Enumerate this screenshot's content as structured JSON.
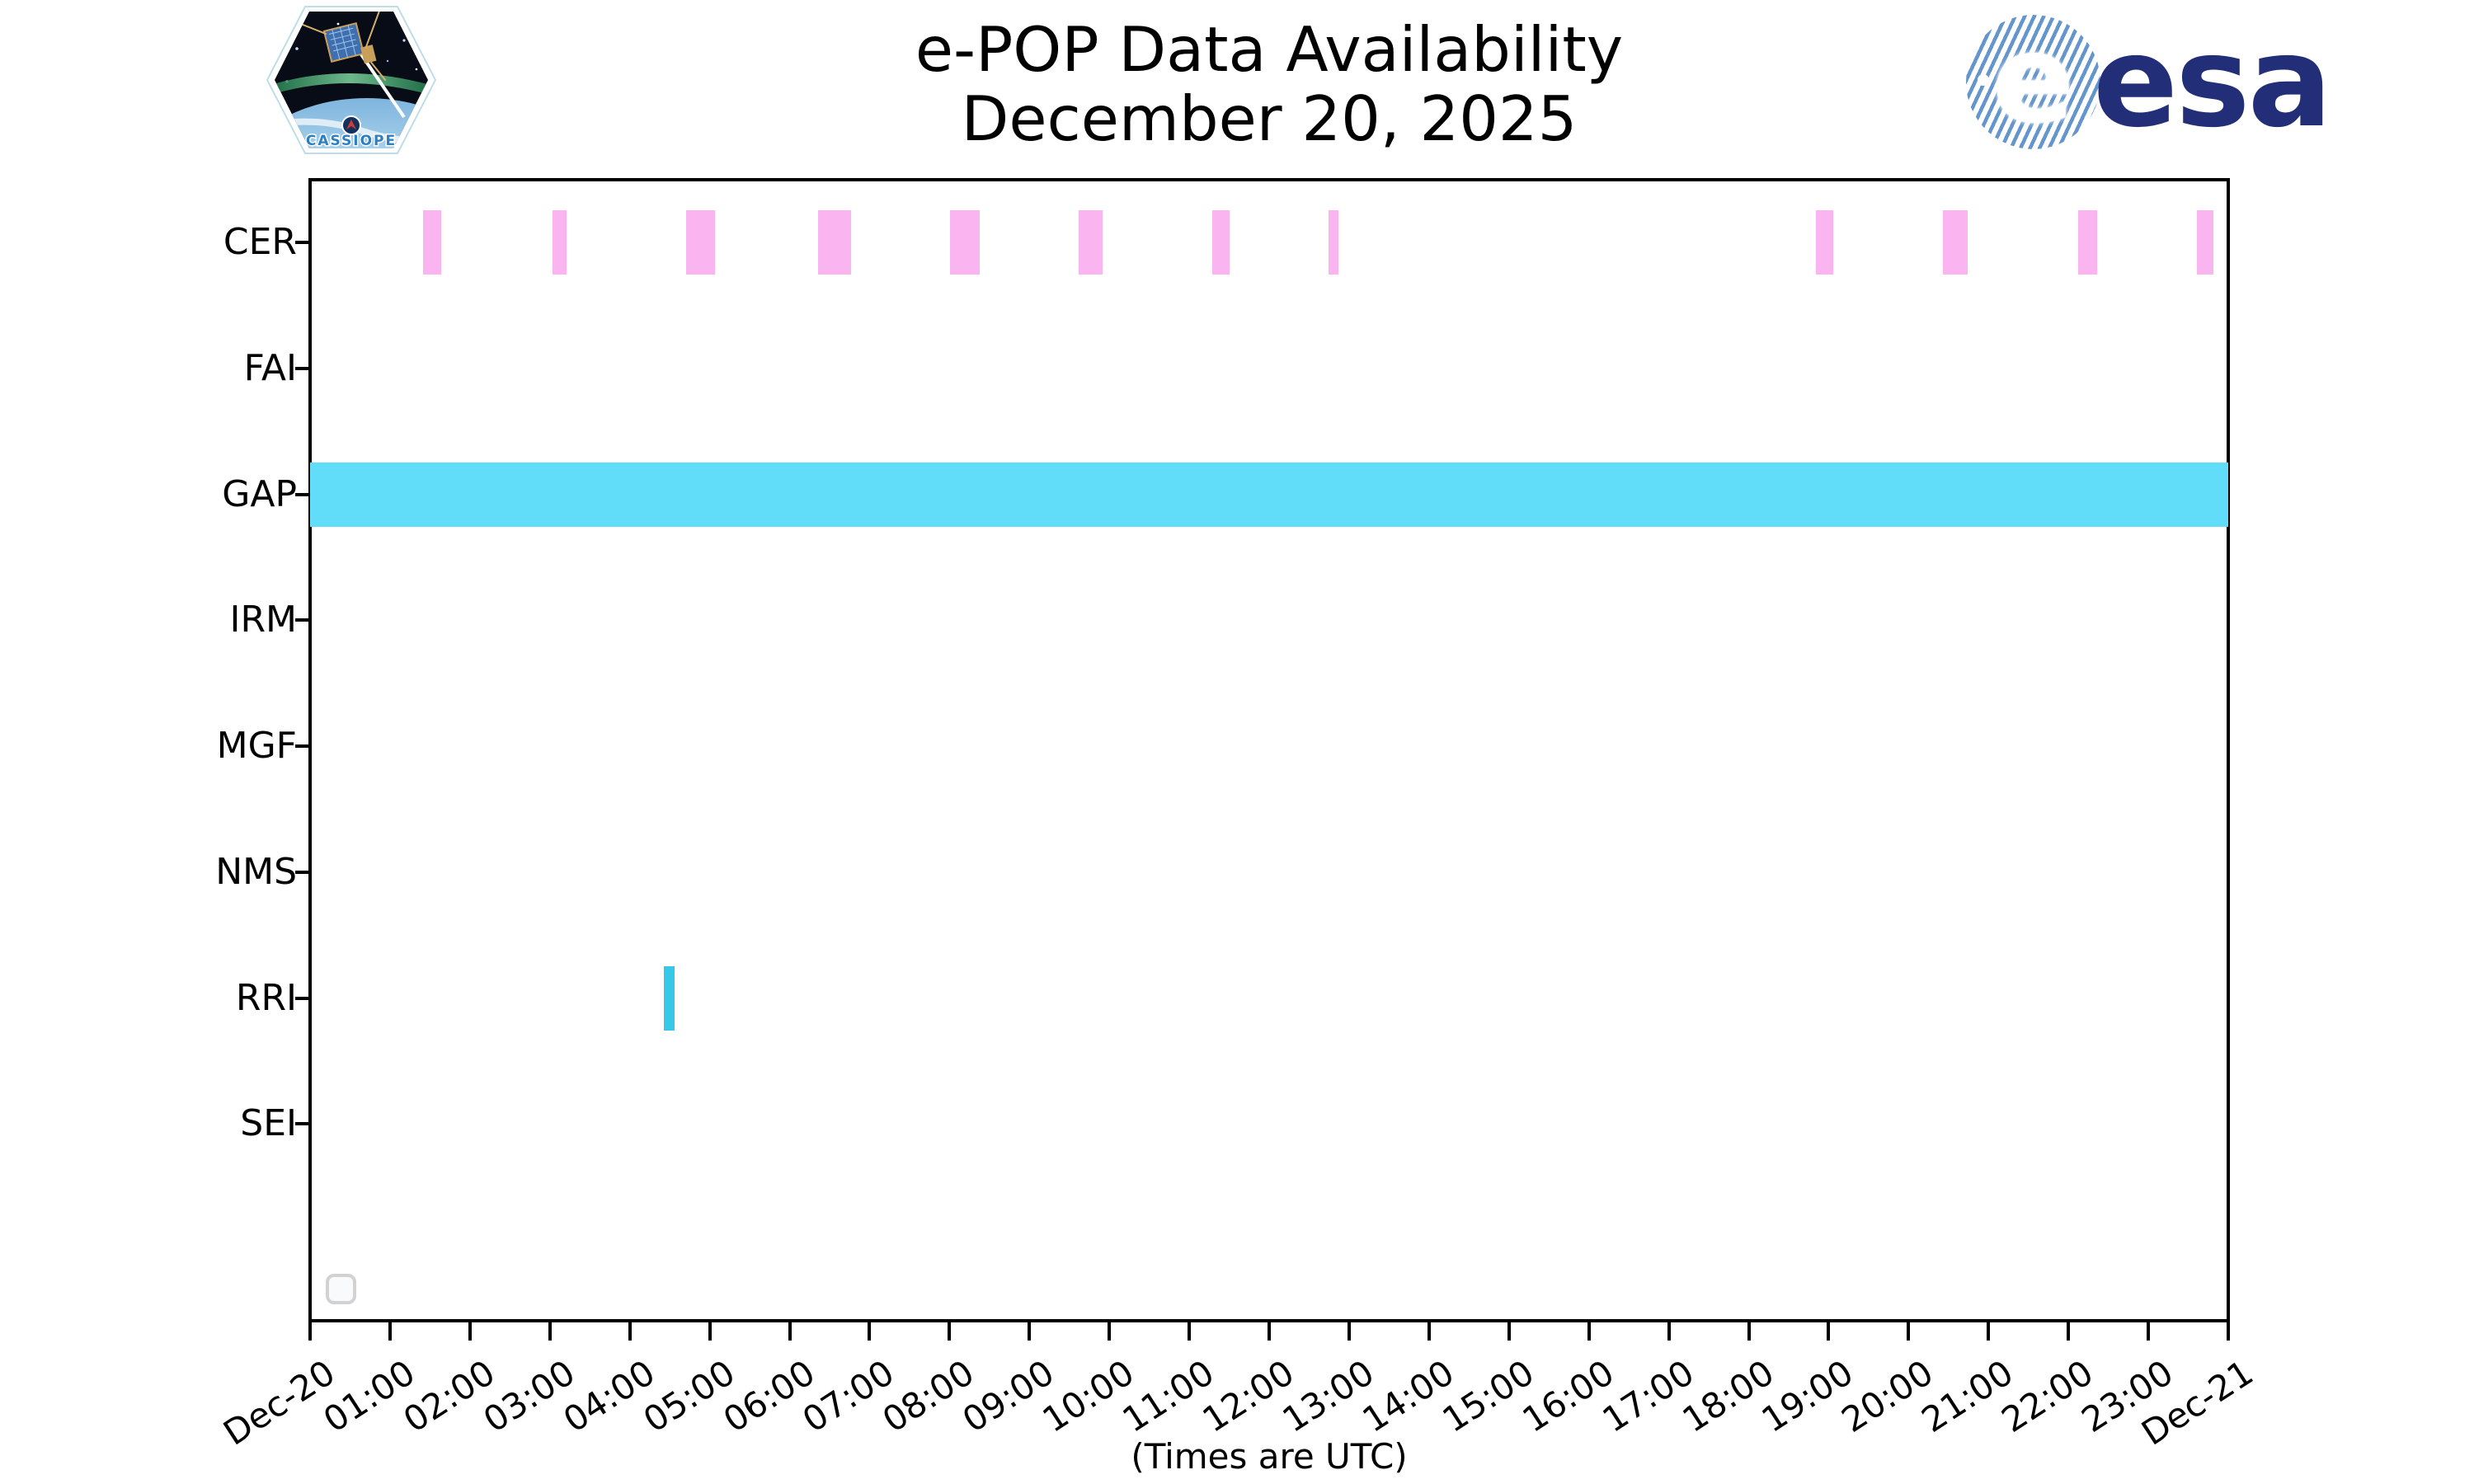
{
  "header": {
    "cassiope_label": "CASSIOPE",
    "esa_label": "esa"
  },
  "colors": {
    "background": "#ffffff",
    "axis": "#000000",
    "cer_bar": "#fab4f0",
    "gap_bar": "#61ddf9",
    "rri_bar": "#35c8e8",
    "esa_navy": "#232e78",
    "esa_globe_stripe": "#6496cd",
    "legend_border": "#d2d2d2",
    "legend_fill": "#f9fafc"
  },
  "chart_data": {
    "type": "bar",
    "subtype": "horizontal-availability-timeline",
    "title": "e-POP Data Availability",
    "subtitle": "December 20, 2025",
    "xlabel": "(Times are UTC)",
    "grid": false,
    "legend": {
      "visible": true,
      "entries": []
    },
    "x_axis": {
      "start_label": "Dec-20",
      "end_label": "Dec-21",
      "range_hours": [
        0,
        24
      ],
      "tick_interval_hours": 1,
      "tick_labels": [
        "Dec-20",
        "01:00",
        "02:00",
        "03:00",
        "04:00",
        "05:00",
        "06:00",
        "07:00",
        "08:00",
        "09:00",
        "10:00",
        "11:00",
        "12:00",
        "13:00",
        "14:00",
        "15:00",
        "16:00",
        "17:00",
        "18:00",
        "19:00",
        "20:00",
        "21:00",
        "22:00",
        "23:00",
        "Dec-21"
      ],
      "tick_label_rotation_deg": -33
    },
    "instruments": [
      "CER",
      "FAI",
      "GAP",
      "IRM",
      "MGF",
      "NMS",
      "RRI",
      "SEI"
    ],
    "series": [
      {
        "instrument": "CER",
        "color": "#fab4f0",
        "intervals_utc_hours": [
          [
            1.41,
            1.64
          ],
          [
            3.03,
            3.21
          ],
          [
            4.7,
            5.07
          ],
          [
            6.36,
            6.77
          ],
          [
            8.01,
            8.38
          ],
          [
            9.62,
            9.92
          ],
          [
            11.29,
            11.51
          ],
          [
            12.74,
            12.87
          ],
          [
            18.84,
            19.06
          ],
          [
            20.43,
            20.74
          ],
          [
            22.12,
            22.36
          ],
          [
            23.61,
            23.81
          ]
        ]
      },
      {
        "instrument": "FAI",
        "color": null,
        "intervals_utc_hours": []
      },
      {
        "instrument": "GAP",
        "color": "#61ddf9",
        "intervals_utc_hours": [
          [
            0,
            24
          ]
        ]
      },
      {
        "instrument": "IRM",
        "color": null,
        "intervals_utc_hours": []
      },
      {
        "instrument": "MGF",
        "color": null,
        "intervals_utc_hours": []
      },
      {
        "instrument": "NMS",
        "color": null,
        "intervals_utc_hours": []
      },
      {
        "instrument": "RRI",
        "color": "#35c8e8",
        "intervals_utc_hours": [
          [
            4.43,
            4.56
          ]
        ]
      },
      {
        "instrument": "SEI",
        "color": null,
        "intervals_utc_hours": []
      }
    ]
  }
}
